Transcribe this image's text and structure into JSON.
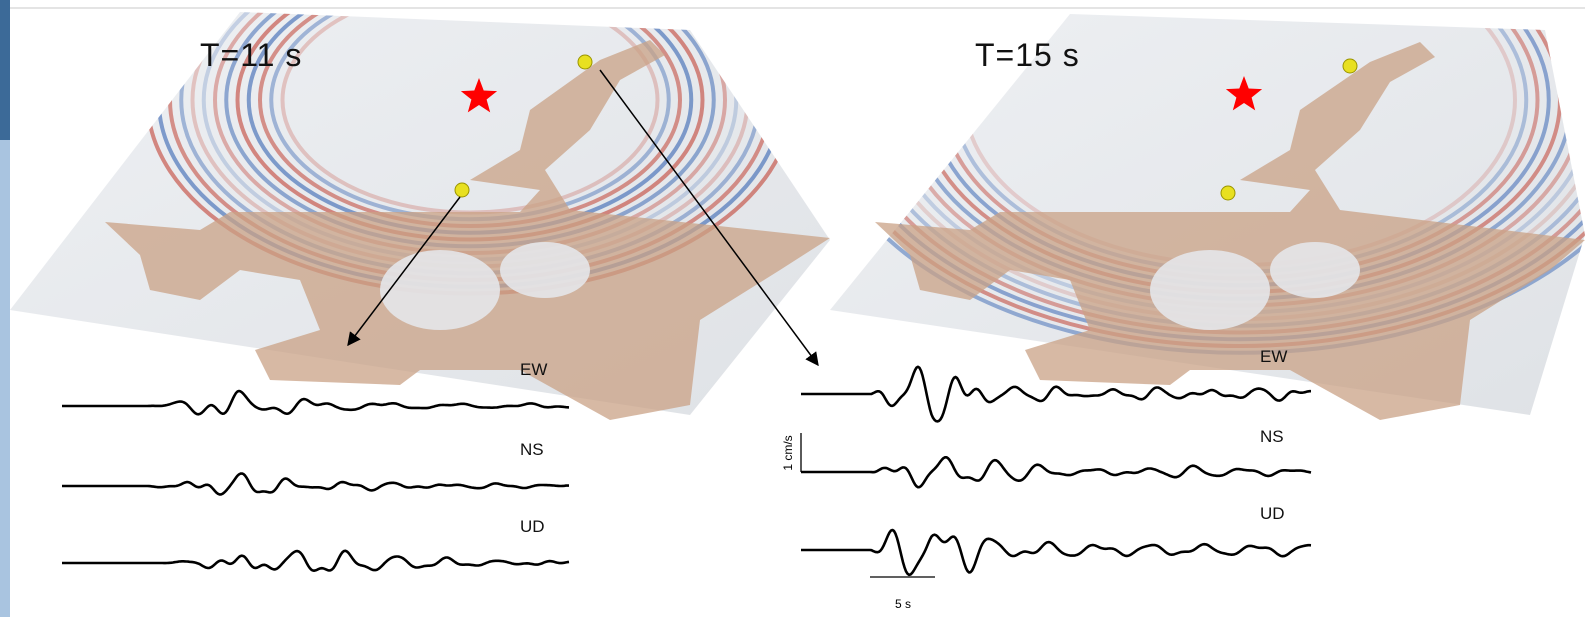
{
  "panels": [
    {
      "title": "T=11 s",
      "components": [
        "EW",
        "NS",
        "UD"
      ]
    },
    {
      "title": "T=15 s",
      "components": [
        "EW",
        "NS",
        "UD"
      ],
      "scale": {
        "amplitude": "1 cm/s",
        "time": "5 s"
      }
    }
  ]
}
